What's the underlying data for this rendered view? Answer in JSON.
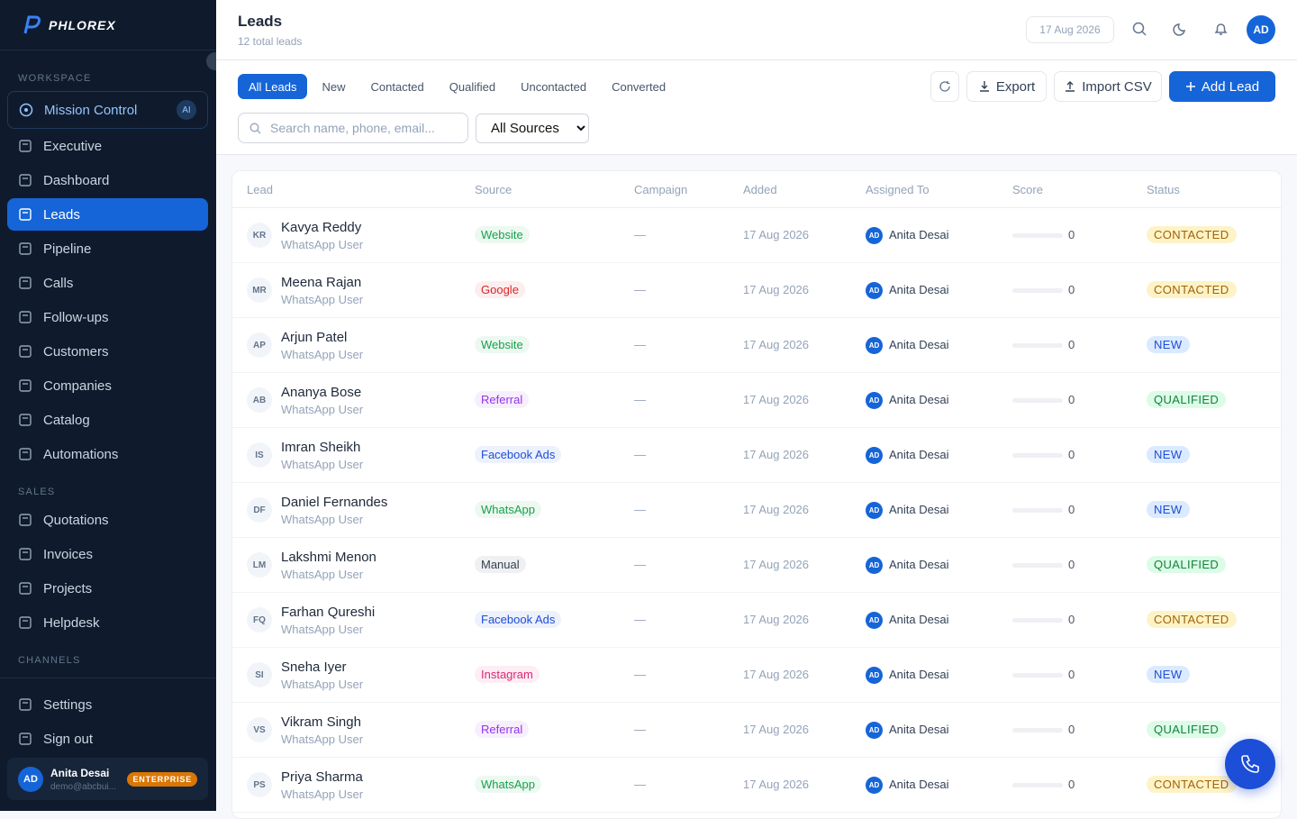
{
  "sidebar": {
    "logo": "PHLOREX",
    "workspace_label": "WORKSPACE",
    "mission": {
      "label": "Mission Control",
      "badge": "AI"
    },
    "workspace_items": [
      "Executive",
      "Dashboard",
      "Leads",
      "Pipeline",
      "Calls",
      "Follow-ups",
      "Customers",
      "Companies",
      "Catalog",
      "Automations"
    ],
    "sales_label": "SALES",
    "sales_items": [
      "Quotations",
      "Invoices",
      "Projects",
      "Helpdesk"
    ],
    "channels_label": "CHANNELS",
    "bottom_items": [
      "Settings",
      "Sign out"
    ],
    "user": {
      "initials": "AD",
      "name": "Anita Desai",
      "email": "demo@abcbui...",
      "plan": "ENTERPRISE"
    }
  },
  "header": {
    "title": "Leads",
    "subtitle": "12 total leads",
    "date": "17 Aug 2026",
    "avatar": "AD"
  },
  "tabs": [
    "All Leads",
    "New",
    "Contacted",
    "Qualified",
    "Uncontacted",
    "Converted"
  ],
  "actions": {
    "export": "Export",
    "import": "Import CSV",
    "add": "Add Lead"
  },
  "search_placeholder": "Search name, phone, email...",
  "source_filter": "All Sources",
  "table": {
    "columns": [
      "Lead",
      "Source",
      "Campaign",
      "Added",
      "Assigned To",
      "Score",
      "Status"
    ],
    "rows": [
      {
        "initials": "KR",
        "name": "Kavya Reddy",
        "sub": "WhatsApp User",
        "source": "Website",
        "source_color": "#16a34a",
        "campaign": "—",
        "added": "17 Aug 2026",
        "assignee_initials": "AD",
        "assignee": "Anita Desai",
        "score": 0,
        "status": "CONTACTED",
        "status_color": "#a16207",
        "status_bg": "#fef3c7"
      },
      {
        "initials": "MR",
        "name": "Meena Rajan",
        "sub": "WhatsApp User",
        "source": "Google",
        "source_color": "#dc2626",
        "campaign": "—",
        "added": "17 Aug 2026",
        "assignee_initials": "AD",
        "assignee": "Anita Desai",
        "score": 0,
        "status": "CONTACTED",
        "status_color": "#a16207",
        "status_bg": "#fef3c7"
      },
      {
        "initials": "AP",
        "name": "Arjun Patel",
        "sub": "WhatsApp User",
        "source": "Website",
        "source_color": "#16a34a",
        "campaign": "—",
        "added": "17 Aug 2026",
        "assignee_initials": "AD",
        "assignee": "Anita Desai",
        "score": 0,
        "status": "NEW",
        "status_color": "#1d4ed8",
        "status_bg": "#dbeafe"
      },
      {
        "initials": "AB",
        "name": "Ananya Bose",
        "sub": "WhatsApp User",
        "source": "Referral",
        "source_color": "#9333ea",
        "campaign": "—",
        "added": "17 Aug 2026",
        "assignee_initials": "AD",
        "assignee": "Anita Desai",
        "score": 0,
        "status": "QUALIFIED",
        "status_color": "#15803d",
        "status_bg": "#dcfce7"
      },
      {
        "initials": "IS",
        "name": "Imran Sheikh",
        "sub": "WhatsApp User",
        "source": "Facebook Ads",
        "source_color": "#1d4ed8",
        "campaign": "—",
        "added": "17 Aug 2026",
        "assignee_initials": "AD",
        "assignee": "Anita Desai",
        "score": 0,
        "status": "NEW",
        "status_color": "#1d4ed8",
        "status_bg": "#dbeafe"
      },
      {
        "initials": "DF",
        "name": "Daniel Fernandes",
        "sub": "WhatsApp User",
        "source": "WhatsApp",
        "source_color": "#16a34a",
        "campaign": "—",
        "added": "17 Aug 2026",
        "assignee_initials": "AD",
        "assignee": "Anita Desai",
        "score": 0,
        "status": "NEW",
        "status_color": "#1d4ed8",
        "status_bg": "#dbeafe"
      },
      {
        "initials": "LM",
        "name": "Lakshmi Menon",
        "sub": "WhatsApp User",
        "source": "Manual",
        "source_color": "#374151",
        "campaign": "—",
        "added": "17 Aug 2026",
        "assignee_initials": "AD",
        "assignee": "Anita Desai",
        "score": 0,
        "status": "QUALIFIED",
        "status_color": "#15803d",
        "status_bg": "#dcfce7"
      },
      {
        "initials": "FQ",
        "name": "Farhan Qureshi",
        "sub": "WhatsApp User",
        "source": "Facebook Ads",
        "source_color": "#1d4ed8",
        "campaign": "—",
        "added": "17 Aug 2026",
        "assignee_initials": "AD",
        "assignee": "Anita Desai",
        "score": 0,
        "status": "CONTACTED",
        "status_color": "#a16207",
        "status_bg": "#fef3c7"
      },
      {
        "initials": "SI",
        "name": "Sneha Iyer",
        "sub": "WhatsApp User",
        "source": "Instagram",
        "source_color": "#db2777",
        "campaign": "—",
        "added": "17 Aug 2026",
        "assignee_initials": "AD",
        "assignee": "Anita Desai",
        "score": 0,
        "status": "NEW",
        "status_color": "#1d4ed8",
        "status_bg": "#dbeafe"
      },
      {
        "initials": "VS",
        "name": "Vikram Singh",
        "sub": "WhatsApp User",
        "source": "Referral",
        "source_color": "#9333ea",
        "campaign": "—",
        "added": "17 Aug 2026",
        "assignee_initials": "AD",
        "assignee": "Anita Desai",
        "score": 0,
        "status": "QUALIFIED",
        "status_color": "#15803d",
        "status_bg": "#dcfce7"
      },
      {
        "initials": "PS",
        "name": "Priya Sharma",
        "sub": "WhatsApp User",
        "source": "WhatsApp",
        "source_color": "#16a34a",
        "campaign": "—",
        "added": "17 Aug 2026",
        "assignee_initials": "AD",
        "assignee": "Anita Desai",
        "score": 0,
        "status": "CONTACTED",
        "status_color": "#a16207",
        "status_bg": "#fef3c7"
      }
    ]
  }
}
